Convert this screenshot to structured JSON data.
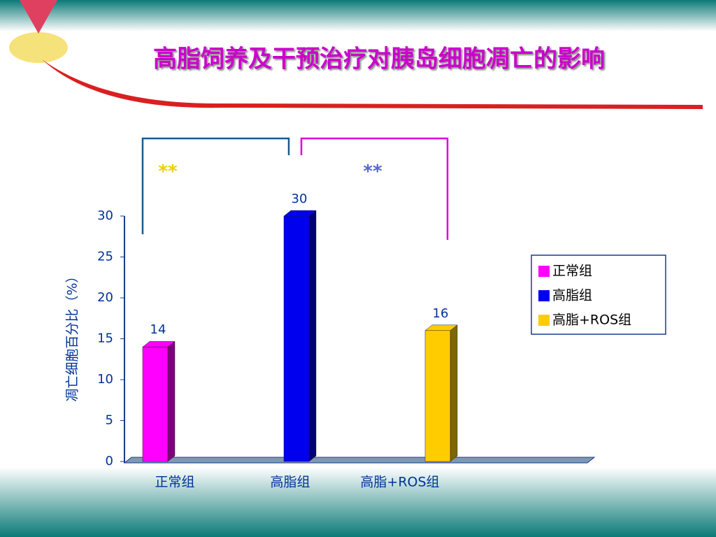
{
  "chart_data": {
    "type": "bar",
    "title": "高脂饲养及干预治疗对胰岛细胞凋亡的影响",
    "y_label": "凋亡细胞百分比（%）",
    "categories": [
      "正常组",
      "高脂组",
      "高脂+ROS组"
    ],
    "values": [
      14,
      30,
      16
    ],
    "colors": [
      "#ff00ff",
      "#0000ee",
      "#ffcc00"
    ],
    "ylim": [
      0,
      30
    ],
    "yticks": [
      0,
      5,
      10,
      15,
      20,
      25,
      30
    ],
    "annotations": [
      "**",
      "**"
    ],
    "legend": "right"
  }
}
